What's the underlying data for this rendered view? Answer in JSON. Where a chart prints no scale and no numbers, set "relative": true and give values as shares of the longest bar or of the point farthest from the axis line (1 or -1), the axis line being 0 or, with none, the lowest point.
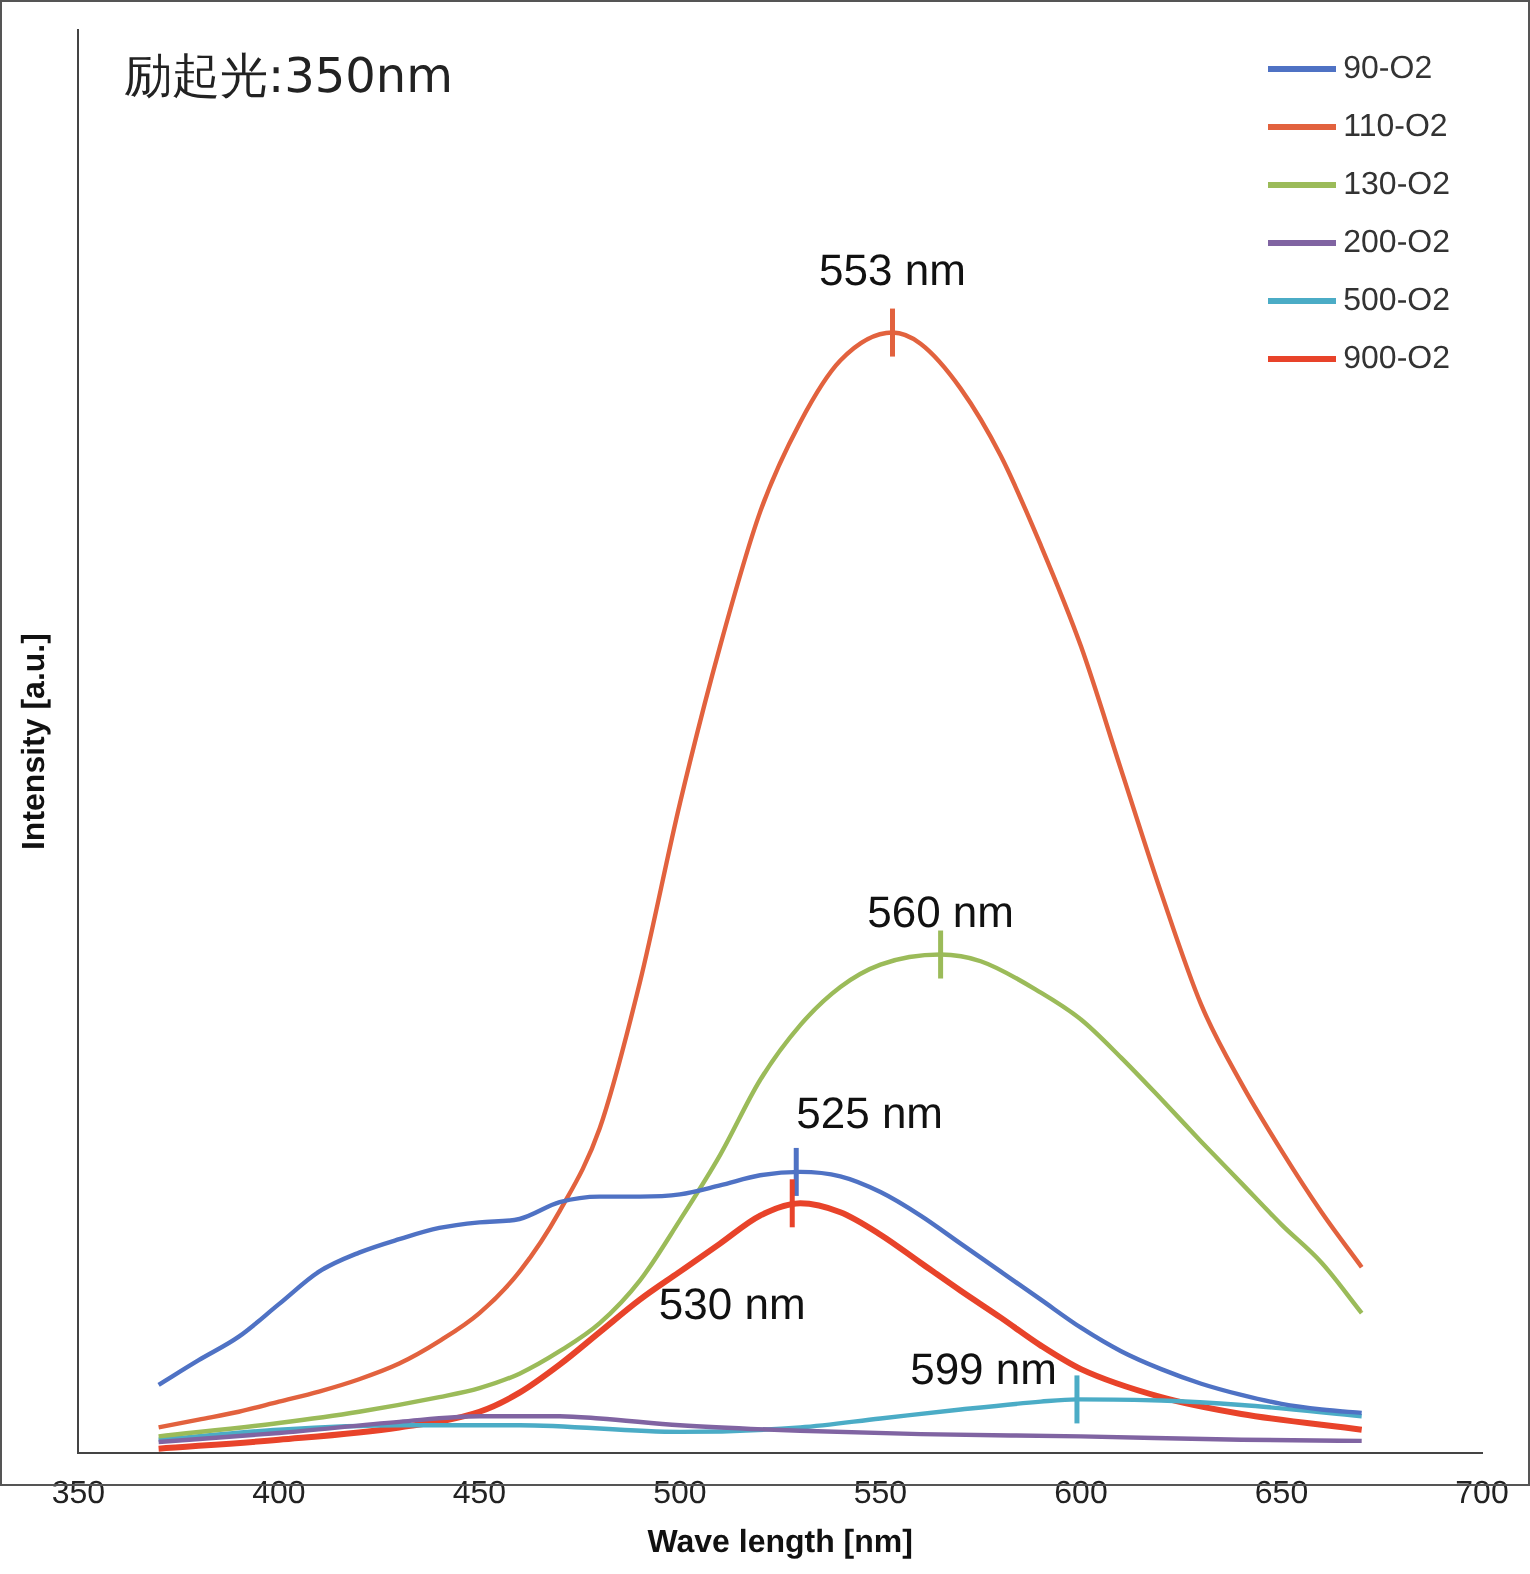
{
  "chart_data": {
    "type": "line",
    "title": "励起光:350nm",
    "xlabel": "Wave length [nm]",
    "ylabel": "Intensity [a.u.]",
    "relative": true,
    "xlim": [
      350,
      700
    ],
    "xticks": [
      350,
      400,
      450,
      500,
      550,
      600,
      650,
      700
    ],
    "grid": false,
    "legend": "top right",
    "marker": "none",
    "line_style": "solid",
    "x": [
      370,
      380,
      390,
      400,
      410,
      420,
      430,
      440,
      450,
      460,
      470,
      480,
      490,
      500,
      510,
      520,
      530,
      540,
      550,
      560,
      570,
      580,
      590,
      600,
      610,
      620,
      630,
      640,
      650,
      660,
      670
    ],
    "series": [
      {
        "name": "90-O2",
        "color": "#4f72c4",
        "values": [
          0.061,
          0.083,
          0.104,
          0.133,
          0.162,
          0.179,
          0.191,
          0.201,
          0.206,
          0.209,
          0.224,
          0.229,
          0.229,
          0.231,
          0.239,
          0.248,
          0.251,
          0.247,
          0.233,
          0.212,
          0.187,
          0.162,
          0.137,
          0.112,
          0.091,
          0.075,
          0.062,
          0.052,
          0.044,
          0.039,
          0.036
        ]
      },
      {
        "name": "110-O2",
        "color": "#e2623e",
        "x": [
          370,
          380,
          390,
          400,
          410,
          420,
          430,
          440,
          450,
          460,
          470,
          480,
          490,
          500,
          510,
          520,
          530,
          540,
          553,
          560,
          570,
          580,
          590,
          600,
          610,
          620,
          630,
          640,
          650,
          660,
          670
        ],
        "values": [
          0.023,
          0.03,
          0.037,
          0.046,
          0.055,
          0.066,
          0.08,
          0.1,
          0.125,
          0.162,
          0.216,
          0.29,
          0.42,
          0.58,
          0.72,
          0.84,
          0.92,
          0.975,
          1.0,
          0.99,
          0.95,
          0.89,
          0.81,
          0.72,
          0.61,
          0.5,
          0.4,
          0.33,
          0.27,
          0.215,
          0.166
        ]
      },
      {
        "name": "130-O2",
        "color": "#9bbb59",
        "x": [
          370,
          400,
          420,
          440,
          450,
          460,
          470,
          480,
          490,
          500,
          510,
          520,
          530,
          540,
          550,
          565,
          575,
          590,
          600,
          610,
          620,
          630,
          640,
          650,
          660,
          670
        ],
        "values": [
          0.015,
          0.027,
          0.037,
          0.05,
          0.058,
          0.071,
          0.091,
          0.116,
          0.154,
          0.208,
          0.266,
          0.333,
          0.382,
          0.416,
          0.436,
          0.445,
          0.439,
          0.411,
          0.387,
          0.353,
          0.316,
          0.278,
          0.241,
          0.204,
          0.17,
          0.125
        ]
      },
      {
        "name": "200-O2",
        "color": "#8064a2",
        "x": [
          370,
          400,
          430,
          450,
          470,
          480,
          500,
          530,
          560,
          600,
          640,
          670
        ],
        "values": [
          0.01,
          0.018,
          0.028,
          0.033,
          0.033,
          0.031,
          0.025,
          0.02,
          0.017,
          0.015,
          0.012,
          0.011
        ]
      },
      {
        "name": "500-O2",
        "color": "#4bacc6",
        "x": [
          370,
          400,
          430,
          460,
          500,
          530,
          550,
          570,
          590,
          599,
          620,
          640,
          670
        ],
        "values": [
          0.012,
          0.021,
          0.025,
          0.025,
          0.019,
          0.023,
          0.031,
          0.039,
          0.046,
          0.048,
          0.047,
          0.043,
          0.033
        ]
      },
      {
        "name": "900-O2",
        "color": "#e8432a",
        "x": [
          370,
          400,
          430,
          450,
          460,
          470,
          480,
          490,
          500,
          510,
          520,
          530,
          540,
          550,
          560,
          570,
          580,
          590,
          600,
          620,
          640,
          670
        ],
        "values": [
          0.004,
          0.012,
          0.023,
          0.037,
          0.054,
          0.079,
          0.108,
          0.137,
          0.162,
          0.187,
          0.212,
          0.223,
          0.215,
          0.195,
          0.17,
          0.145,
          0.121,
          0.096,
          0.075,
          0.05,
          0.035,
          0.021
        ]
      }
    ],
    "annotations": [
      {
        "text": "553 nm",
        "x": 553,
        "y": 1.0
      },
      {
        "text": "560 nm",
        "x": 565,
        "y": 0.445
      },
      {
        "text": "525 nm",
        "x": 529,
        "y": 0.251
      },
      {
        "text": "530 nm",
        "x": 528,
        "y": 0.223
      },
      {
        "text": "599 nm",
        "x": 599,
        "y": 0.048
      }
    ]
  }
}
